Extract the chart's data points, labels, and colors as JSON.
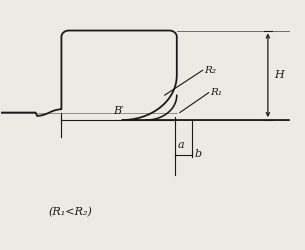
{
  "bg_color": "#ede9e3",
  "line_color": "#1a1a1a",
  "label_R1": "R₁",
  "label_R2": "R₂",
  "label_H": "H",
  "label_Bprime": "B′",
  "label_a": "a",
  "label_b": "b",
  "label_condition": "(R₁<R₂)",
  "figsize": [
    3.05,
    2.5
  ],
  "dpi": 100,
  "xlim": [
    0,
    10
  ],
  "ylim": [
    0,
    10
  ]
}
